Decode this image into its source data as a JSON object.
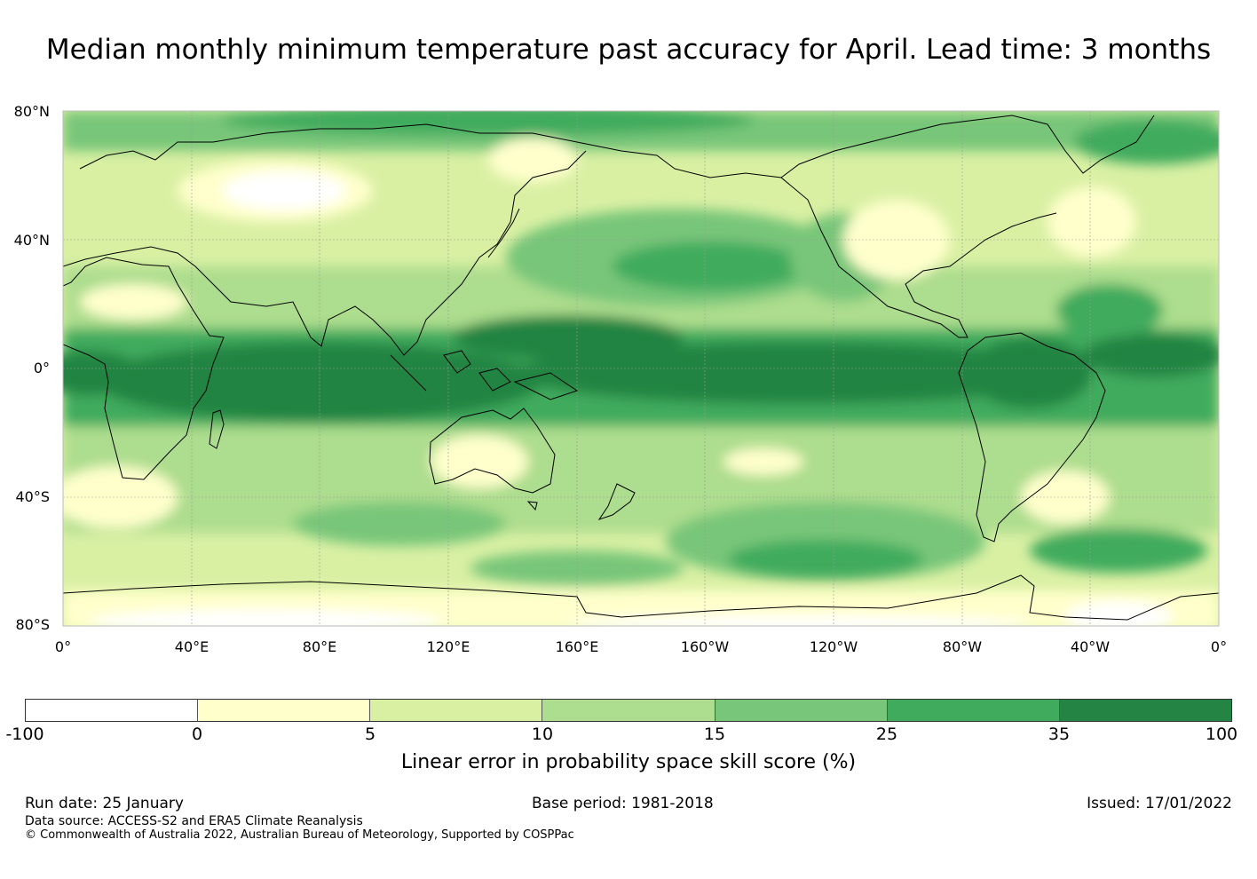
{
  "title": "Median monthly minimum temperature past accuracy for April. Lead time: 3 months",
  "map": {
    "projection": "equirectangular, 0° to 360° longitude, 80°S to 80°N",
    "lat_labels": [
      "80°N",
      "40°N",
      "0°",
      "40°S",
      "80°S"
    ],
    "lon_labels": [
      "0°",
      "40°E",
      "80°E",
      "120°E",
      "160°E",
      "160°W",
      "120°W",
      "80°W",
      "40°W",
      "0°"
    ],
    "palette": [
      "#ffffff",
      "#ffffcc",
      "#d9f0a3",
      "#addd8e",
      "#78c679",
      "#41ab5d",
      "#238443"
    ]
  },
  "colorbar": {
    "ticks": [
      "-100",
      "0",
      "5",
      "10",
      "15",
      "25",
      "35",
      "100"
    ],
    "colors": [
      "#ffffff",
      "#ffffcc",
      "#d9f0a3",
      "#addd8e",
      "#78c679",
      "#41ab5d",
      "#238443"
    ],
    "label": "Linear error in probability space skill score (%)"
  },
  "footer": {
    "run_date": "Run date: 25 January",
    "base_period": "Base period: 1981-2018",
    "issued": "Issued: 17/01/2022",
    "data_source": "Data source: ACCESS-S2 and ERA5 Climate Reanalysis",
    "copyright": "© Commonwealth of Australia 2022, Australian Bureau of Meteorology, Supported by COSPPac"
  }
}
